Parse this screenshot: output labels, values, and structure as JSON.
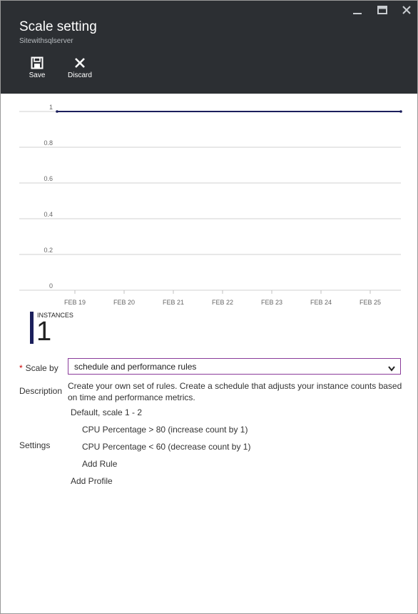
{
  "window": {
    "controls": [
      {
        "name": "minimize-icon",
        "glyph": "minimize"
      },
      {
        "name": "maximize-icon",
        "glyph": "maximize"
      },
      {
        "name": "close-icon",
        "glyph": "close"
      }
    ]
  },
  "header": {
    "title": "Scale setting",
    "subtitle": "Sitewithsqlserver",
    "commands": {
      "save_label": "Save",
      "save_icon": "save-icon",
      "discard_label": "Discard",
      "discard_icon": "close-icon"
    },
    "background": "#2c2f33"
  },
  "chart_data": {
    "type": "line",
    "title": "",
    "xlabel": "",
    "ylabel": "",
    "categories": [
      "FEB 19",
      "FEB 20",
      "FEB 21",
      "FEB 22",
      "FEB 23",
      "FEB 24",
      "FEB 25"
    ],
    "y_ticks": [
      "1",
      "0.8",
      "0.6",
      "0.4",
      "0.2",
      "0"
    ],
    "ylim": [
      0,
      1
    ],
    "grid": true,
    "series": [
      {
        "values": [
          1,
          1,
          1,
          1,
          1,
          1,
          1
        ],
        "color": "#1b1f5c"
      }
    ]
  },
  "instances": {
    "label": "INSTANCES",
    "value": "1",
    "accent": "#1b1f5c"
  },
  "form": {
    "scale_by": {
      "required_mark": "*",
      "label": "Scale by",
      "value": "schedule and performance rules",
      "chevron_icon": "chevron-down-icon",
      "border_color": "#8a3b9a"
    },
    "description": {
      "label": "Description",
      "text": "Create your own set of rules. Create a schedule that adjusts your instance counts based on time and performance metrics."
    },
    "settings": {
      "label": "Settings",
      "profile": "Default, scale 1 - 2",
      "rules": [
        "CPU Percentage > 80 (increase count by 1)",
        "CPU Percentage < 60 (decrease count by 1)"
      ],
      "add_rule": "Add Rule",
      "add_profile": "Add Profile"
    }
  }
}
